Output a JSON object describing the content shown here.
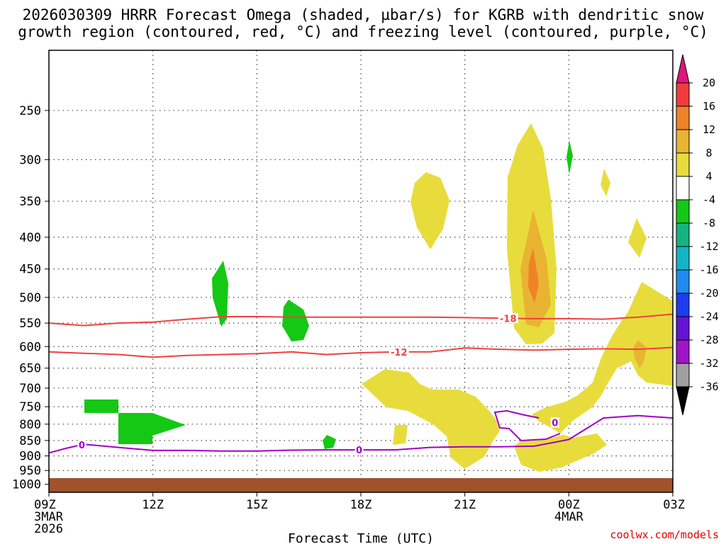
{
  "chart_data": {
    "type": "heatmap",
    "title": [
      "2026030309 HRRR Forecast Omega (shaded, µbar/s) for KGRB with dendritic snow",
      "growth region (contoured, red, °C) and freezing level (contoured, purple, °C)"
    ],
    "xlabel": "Forecast Time (UTC)",
    "ylabel": "",
    "y_scale": "log",
    "ylim": [
      1030,
      200
    ],
    "xlim": [
      0,
      18
    ],
    "x_hours": [
      0,
      3,
      6,
      9,
      12,
      15,
      18
    ],
    "x_tick_labels": [
      "09Z",
      "12Z",
      "15Z",
      "18Z",
      "21Z",
      "00Z",
      "03Z"
    ],
    "x_date_labels": [
      {
        "hour": 0,
        "lines": [
          "3MAR",
          "2026"
        ]
      },
      {
        "hour": 15,
        "lines": [
          "4MAR"
        ]
      }
    ],
    "y_ticks": [
      250,
      300,
      350,
      400,
      450,
      500,
      550,
      600,
      650,
      700,
      750,
      800,
      850,
      900,
      950,
      1000
    ],
    "grid": true,
    "ground_color": "#a0522d",
    "colorbar": {
      "levels": [
        "20",
        "16",
        "12",
        "8",
        "4",
        "-4",
        "-8",
        "-12",
        "-16",
        "-20",
        "-24",
        "-28",
        "-32",
        "-36"
      ],
      "colors": [
        "#e0147a",
        "#f03c3c",
        "#f08228",
        "#e8b432",
        "#e8dc3c",
        "#ffffff",
        "#14c814",
        "#14b482",
        "#14b4c8",
        "#1e8cf0",
        "#1e3cf0",
        "#6414d2",
        "#a014c8",
        "#a0a0a0",
        "#000000"
      ]
    },
    "shade_colors": {
      "omega_4_8": "#e8dc3c",
      "omega_8_12": "#e8b432",
      "omega_12_16": "#f08228",
      "omega_m8_m4": "#14c814"
    },
    "contours": [
      {
        "name": "-18",
        "color": "#f04040",
        "x": [
          0,
          1,
          2,
          3,
          4,
          5,
          6,
          7,
          8,
          9,
          10,
          11,
          12,
          13,
          14,
          15,
          16,
          17,
          18
        ],
        "p": [
          550,
          555,
          550,
          548,
          542,
          537,
          537,
          538,
          538,
          538,
          538,
          538,
          539,
          540,
          541,
          541,
          542,
          538,
          532
        ]
      },
      {
        "name": "-12",
        "color": "#f04040",
        "x": [
          0,
          1,
          2,
          3,
          4,
          5,
          6,
          7,
          8,
          9,
          10,
          11,
          12,
          13,
          14,
          15,
          16,
          17,
          18
        ],
        "p": [
          612,
          615,
          618,
          624,
          620,
          618,
          616,
          612,
          618,
          614,
          612,
          612,
          603,
          606,
          608,
          606,
          605,
          606,
          602
        ]
      },
      {
        "name": "0",
        "color": "#a000c8",
        "x": [
          0,
          0.5,
          1,
          2,
          3,
          4,
          5,
          6,
          7,
          8,
          9,
          10,
          11,
          12,
          13,
          14,
          15,
          16,
          17,
          18
        ],
        "p": [
          890,
          875,
          862,
          872,
          882,
          882,
          884,
          884,
          881,
          880,
          880,
          880,
          872,
          870,
          870,
          868,
          847,
          782,
          775,
          782
        ]
      }
    ],
    "contour_labels": [
      "-18",
      "-12",
      "0",
      "0",
      "0"
    ]
  },
  "footer": {
    "credit": "coolwx.com/models"
  }
}
